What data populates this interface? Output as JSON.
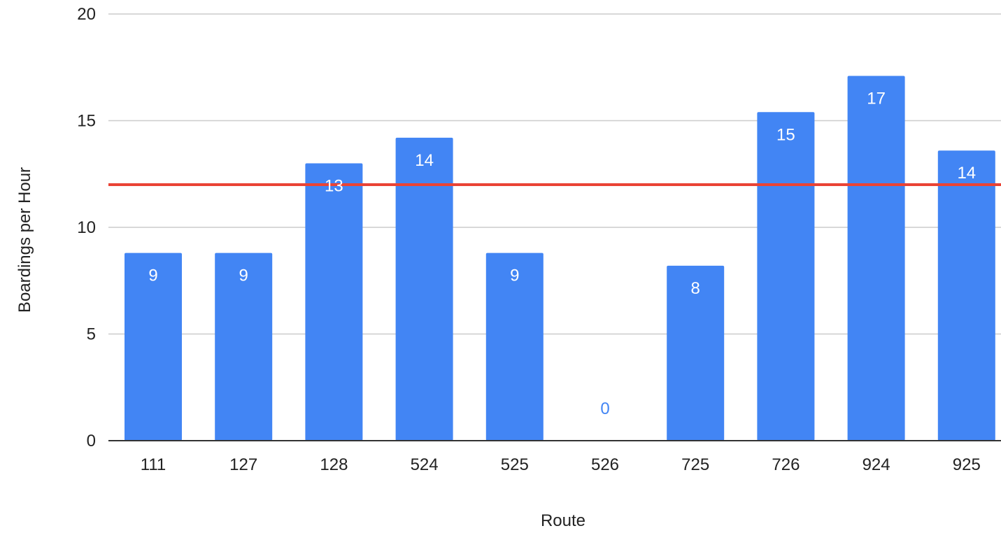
{
  "chart_data": {
    "type": "bar",
    "title": "",
    "xlabel": "Route",
    "ylabel": "Boardings per Hour",
    "categories": [
      "111",
      "127",
      "128",
      "524",
      "525",
      "526",
      "725",
      "726",
      "924",
      "925"
    ],
    "values": [
      8.8,
      8.8,
      13.0,
      14.2,
      8.8,
      0,
      8.2,
      15.4,
      17.1,
      13.6
    ],
    "data_labels": [
      "9",
      "9",
      "13",
      "14",
      "9",
      "0",
      "8",
      "15",
      "17",
      "14"
    ],
    "ylim": [
      0,
      20
    ],
    "yticks": [
      0,
      5,
      10,
      15,
      20
    ],
    "ytick_labels": [
      "0",
      "5",
      "10",
      "15",
      "20"
    ],
    "reference_line": {
      "value": 12
    },
    "grid": true,
    "legend": "none",
    "colors": {
      "bar": "#4285f4",
      "reference_line": "#ea4335",
      "label_inside": "#ffffff",
      "label_outside": "#4285f4",
      "gridline": "#cccccc",
      "axis": "#333333"
    }
  }
}
